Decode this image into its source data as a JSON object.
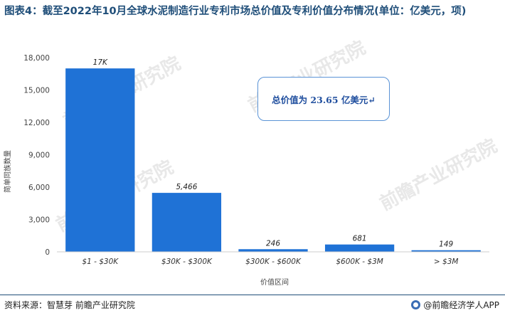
{
  "title": "图表4：截至2022年10月全球水泥制造行业专利市场总价值及专利价值分布情况(单位：亿美元，项)",
  "callout": "总价值为 23.65 亿美元↵",
  "source": "资料来源：智慧芽 前瞻产业研究院",
  "brand": "@前瞻经济学人APP",
  "watermark": "前瞻产业研究院",
  "colors": {
    "bar": "#1f72d6",
    "title": "#1f4e79",
    "axis": "#cccccc"
  },
  "chart_data": {
    "type": "bar",
    "categories": [
      "$1 - $30K",
      "$30K - $300K",
      "$300K - $600K",
      "$600K - $3M",
      "> $3M"
    ],
    "values": [
      17000,
      5466,
      246,
      681,
      149
    ],
    "data_labels": [
      "17K",
      "5,466",
      "246",
      "681",
      "149"
    ],
    "y_ticks": [
      0,
      3000,
      6000,
      9000,
      12000,
      15000,
      18000
    ],
    "y_tick_labels": [
      "0",
      "3,000",
      "6,000",
      "9,000",
      "12,000",
      "15,000",
      "18,000"
    ],
    "ylim": [
      0,
      18000
    ],
    "xlabel": "价值区间",
    "ylabel": "简单同族数量",
    "grid": false
  }
}
